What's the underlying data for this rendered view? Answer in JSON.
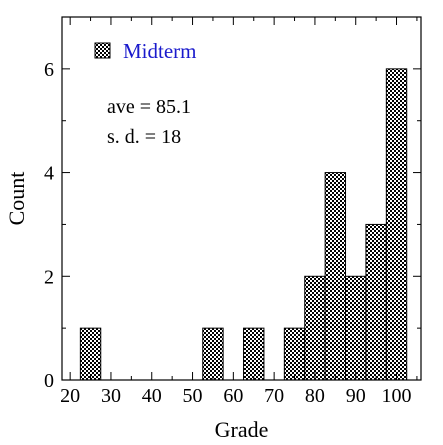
{
  "chart_data": {
    "type": "bar",
    "histogram": true,
    "bin_width": 5,
    "bins": [
      {
        "x_start": 22.5,
        "x_end": 27.5,
        "count": 1
      },
      {
        "x_start": 27.5,
        "x_end": 32.5,
        "count": 0
      },
      {
        "x_start": 32.5,
        "x_end": 37.5,
        "count": 0
      },
      {
        "x_start": 37.5,
        "x_end": 42.5,
        "count": 0
      },
      {
        "x_start": 42.5,
        "x_end": 47.5,
        "count": 0
      },
      {
        "x_start": 47.5,
        "x_end": 52.5,
        "count": 0
      },
      {
        "x_start": 52.5,
        "x_end": 57.5,
        "count": 1
      },
      {
        "x_start": 57.5,
        "x_end": 62.5,
        "count": 0
      },
      {
        "x_start": 62.5,
        "x_end": 67.5,
        "count": 1
      },
      {
        "x_start": 67.5,
        "x_end": 72.5,
        "count": 0
      },
      {
        "x_start": 72.5,
        "x_end": 77.5,
        "count": 1
      },
      {
        "x_start": 77.5,
        "x_end": 82.5,
        "count": 2
      },
      {
        "x_start": 82.5,
        "x_end": 87.5,
        "count": 4
      },
      {
        "x_start": 87.5,
        "x_end": 92.5,
        "count": 2
      },
      {
        "x_start": 92.5,
        "x_end": 97.5,
        "count": 3
      },
      {
        "x_start": 97.5,
        "x_end": 102.5,
        "count": 6
      }
    ],
    "series": [
      {
        "name": "Midterm"
      }
    ],
    "xlabel": "Grade",
    "ylabel": "Count",
    "xlim": [
      18,
      106
    ],
    "ylim": [
      0,
      7
    ],
    "xticks": [
      20,
      30,
      40,
      50,
      60,
      70,
      80,
      90,
      100
    ],
    "xtick_labels": [
      "20",
      "30",
      "40",
      "50",
      "60",
      "70",
      "80",
      "90",
      "100"
    ],
    "yticks": [
      0,
      2,
      4,
      6
    ],
    "ytick_labels": [
      "0",
      "2",
      "4",
      "6"
    ],
    "grid": false,
    "legend_position": "top-left",
    "annotations": [
      "ave = 85.1",
      "s. d. = 18"
    ],
    "colors": {
      "legend_text": "#1a1acc",
      "bar_edge": "#000000",
      "bar_fill": "checkered"
    }
  }
}
